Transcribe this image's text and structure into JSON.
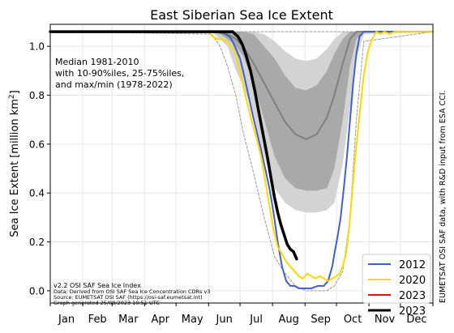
{
  "chart_data": {
    "type": "line",
    "title": "East Siberian Sea Ice Extent",
    "ylabel": "Sea Ice Extent [million km²]",
    "ylabel_main": "Sea Ice Extent [million km",
    "ylabel_sup": "2",
    "ylabel_close": "]",
    "xlabel": "",
    "xlim": [
      1,
      366
    ],
    "ylim": [
      -0.05,
      1.09
    ],
    "yticks": [
      0.0,
      0.2,
      0.4,
      0.6,
      0.8,
      1.0
    ],
    "ytick_labels": [
      "0.0",
      "0.2",
      "0.4",
      "0.6",
      "0.8",
      "1.0"
    ],
    "grid": true,
    "months": [
      "Jan",
      "Feb",
      "Mar",
      "Apr",
      "May",
      "Jun",
      "Jul",
      "Aug",
      "Sep",
      "Oct",
      "Nov",
      "Dec"
    ],
    "month_days": [
      1,
      32,
      60,
      91,
      121,
      152,
      182,
      213,
      244,
      274,
      305,
      335,
      366
    ],
    "climatology": {
      "note_lines": [
        "Median 1981-2010",
        "with 10-90%iles, 25-75%iles,",
        "and max/min (1978-2022)"
      ],
      "colors": {
        "band_10_90": "#d3d3d3",
        "band_25_75": "#a9a9a9",
        "median": "#808080",
        "maxmin": "#9a9a9a"
      },
      "x": [
        1,
        155,
        163,
        170,
        178,
        185,
        195,
        205,
        215,
        225,
        235,
        245,
        255,
        265,
        272,
        280,
        287,
        293,
        300,
        366
      ],
      "median": [
        1.06,
        1.06,
        1.055,
        1.05,
        1.03,
        1.0,
        0.93,
        0.85,
        0.77,
        0.69,
        0.64,
        0.62,
        0.64,
        0.71,
        0.8,
        0.93,
        1.03,
        1.06,
        1.06,
        1.06
      ],
      "p25": [
        1.06,
        1.06,
        1.05,
        1.03,
        1.0,
        0.96,
        0.85,
        0.7,
        0.55,
        0.46,
        0.42,
        0.41,
        0.41,
        0.42,
        0.5,
        0.7,
        0.92,
        1.03,
        1.06,
        1.06
      ],
      "p75": [
        1.06,
        1.06,
        1.06,
        1.06,
        1.06,
        1.06,
        1.05,
        1.0,
        0.95,
        0.88,
        0.83,
        0.82,
        0.84,
        0.9,
        0.97,
        1.03,
        1.06,
        1.06,
        1.06,
        1.06
      ],
      "p10": [
        1.06,
        1.06,
        1.03,
        1.0,
        0.9,
        0.84,
        0.72,
        0.55,
        0.42,
        0.36,
        0.33,
        0.32,
        0.32,
        0.33,
        0.36,
        0.52,
        0.75,
        0.95,
        1.05,
        1.06
      ],
      "p90": [
        1.06,
        1.06,
        1.06,
        1.06,
        1.06,
        1.06,
        1.06,
        1.05,
        1.02,
        0.98,
        0.95,
        0.94,
        0.95,
        0.99,
        1.03,
        1.06,
        1.06,
        1.06,
        1.06,
        1.06
      ],
      "min": [
        1.06,
        1.05,
        1.0,
        0.92,
        0.8,
        0.65,
        0.48,
        0.3,
        0.14,
        0.07,
        0.02,
        0.0,
        0.0,
        0.0,
        0.02,
        0.08,
        0.3,
        0.7,
        1.02,
        1.06
      ],
      "max": [
        1.06,
        1.06,
        1.06,
        1.06,
        1.06,
        1.06,
        1.06,
        1.06,
        1.06,
        1.06,
        1.06,
        1.06,
        1.06,
        1.06,
        1.06,
        1.06,
        1.06,
        1.06,
        1.06,
        1.06
      ]
    },
    "series": [
      {
        "name": "2012",
        "color": "#3f5fcf",
        "x": [
          1,
          163,
          168,
          172,
          175,
          178,
          182,
          186,
          190,
          194,
          198,
          202,
          206,
          210,
          214,
          218,
          222,
          226,
          230,
          234,
          238,
          244,
          250,
          256,
          262,
          266,
          270,
          272,
          275,
          278,
          281,
          284,
          287,
          290,
          293,
          296,
          300,
          366
        ],
        "y": [
          1.06,
          1.06,
          1.05,
          1.04,
          1.02,
          0.99,
          0.95,
          0.88,
          0.8,
          0.72,
          0.65,
          0.58,
          0.5,
          0.42,
          0.32,
          0.2,
          0.1,
          0.04,
          0.02,
          0.02,
          0.01,
          0.01,
          0.01,
          0.02,
          0.02,
          0.04,
          0.1,
          0.15,
          0.22,
          0.3,
          0.42,
          0.55,
          0.7,
          0.85,
          0.97,
          1.04,
          1.06,
          1.06
        ]
      },
      {
        "name": "2020",
        "color": "#ffd700",
        "x": [
          1,
          152,
          156,
          160,
          165,
          170,
          174,
          178,
          182,
          186,
          190,
          194,
          198,
          202,
          206,
          210,
          214,
          218,
          222,
          226,
          230,
          234,
          238,
          242,
          246,
          250,
          254,
          258,
          262,
          266,
          270,
          274,
          277,
          280,
          283,
          286,
          289,
          292,
          296,
          300,
          304,
          308,
          312,
          316,
          320,
          324,
          330,
          366
        ],
        "y": [
          1.06,
          1.06,
          1.04,
          1.03,
          1.03,
          1.02,
          1.0,
          0.97,
          0.9,
          0.82,
          0.75,
          0.68,
          0.62,
          0.55,
          0.45,
          0.35,
          0.25,
          0.18,
          0.15,
          0.12,
          0.1,
          0.08,
          0.06,
          0.05,
          0.07,
          0.06,
          0.05,
          0.06,
          0.05,
          0.04,
          0.05,
          0.06,
          0.07,
          0.1,
          0.15,
          0.25,
          0.4,
          0.55,
          0.72,
          0.88,
          0.98,
          1.03,
          1.06,
          1.05,
          1.06,
          1.05,
          1.06,
          1.06
        ]
      },
      {
        "name": "2023",
        "color": "#e01010",
        "x": [],
        "y": []
      },
      {
        "name": "2023",
        "color": "#000000",
        "x": [
          1,
          175,
          180,
          184,
          188,
          192,
          196,
          200,
          204,
          208,
          212,
          215,
          218,
          221,
          224,
          227,
          230,
          233,
          236
        ],
        "y": [
          1.06,
          1.06,
          1.04,
          1.01,
          0.96,
          0.9,
          0.82,
          0.73,
          0.64,
          0.55,
          0.45,
          0.38,
          0.32,
          0.27,
          0.23,
          0.19,
          0.17,
          0.16,
          0.13
        ]
      }
    ],
    "legend": {
      "placement": "lower-right",
      "entries": [
        "2012",
        "2020",
        "2023"
      ]
    },
    "footer_lines": [
      "v2.2 OSI SAF Sea Ice Index",
      "Data: Derived from OSI SAF Sea Ice Concentration CDRs v3",
      "Source: EUMETSAT OSI SAF (https://osi-saf.eumetsat.int)",
      "Graph generated 25/08/2023 10:51 UTC"
    ],
    "right_credit": "EUMETSAT OSI SAF data, with R&D input from ESA CCI."
  }
}
